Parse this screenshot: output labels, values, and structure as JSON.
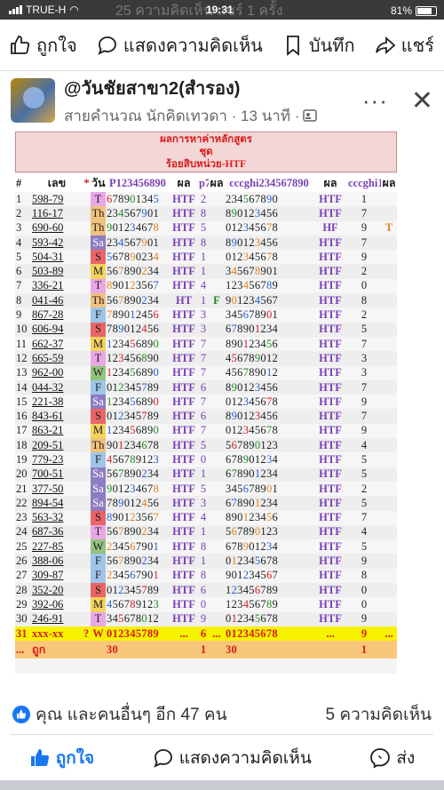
{
  "status_bar": {
    "carrier": "TRUE-H",
    "time": "19:31",
    "battery": "81%",
    "ghost_text": "25 ความคิดเห็น  แชร์ 1 ครั้ง"
  },
  "top_actions": {
    "like": "ถูกใจ",
    "comment": "แสดงความคิดเห็น",
    "save": "บันทึก",
    "share": "แชร์"
  },
  "post": {
    "author": "@วันชัยสาขา2(สำรอง)",
    "subtitle": "สายคำนวณ นักคิดเทวดา · 13 นาที ·",
    "more": "···",
    "close": "✕"
  },
  "table": {
    "head_lines": [
      "ผลการหาค่าหลักสูตร",
      "ชุด",
      "ร้อยสิบหน่วย-HTF"
    ],
    "columns": [
      "#",
      "เลข",
      "*",
      "วัน",
      "P123456890",
      "ผล",
      "p7",
      "ผล",
      "cccghi234567890",
      "ผล",
      "cccghi1",
      "ผล"
    ],
    "rows": [
      {
        "n": "1",
        "code": "598-79",
        "day": "T",
        "d1": "678901345",
        "htf": "HTF",
        "p7": "2",
        "r1": "",
        "d2": "234567890",
        "htf2": "HTF",
        "g": "1",
        "r2": ""
      },
      {
        "n": "2",
        "code": "116-17",
        "day": "Th",
        "d1": "234567901",
        "htf": "HTF",
        "p7": "8",
        "r1": "",
        "d2": "890123456",
        "htf2": "HTF",
        "g": "7",
        "r2": ""
      },
      {
        "n": "3",
        "code": "690-60",
        "day": "Th",
        "d1": "901234678",
        "htf": "HTF",
        "p7": "5",
        "r1": "",
        "d2": "012345678",
        "htf2": "HF",
        "g": "9",
        "r2": "T"
      },
      {
        "n": "4",
        "code": "593-42",
        "day": "Sa",
        "d1": "234567901",
        "htf": "HTF",
        "p7": "8",
        "r1": "",
        "d2": "890123456",
        "htf2": "HTF",
        "g": "7",
        "r2": ""
      },
      {
        "n": "5",
        "code": "504-31",
        "day": "S",
        "d1": "567890234",
        "htf": "HTF",
        "p7": "1",
        "r1": "",
        "d2": "012345678",
        "htf2": "HTF",
        "g": "9",
        "r2": ""
      },
      {
        "n": "6",
        "code": "503-89",
        "day": "M",
        "d1": "567890234",
        "htf": "HTF",
        "p7": "1",
        "r1": "",
        "d2": "345678901",
        "htf2": "HTF",
        "g": "2",
        "r2": ""
      },
      {
        "n": "7",
        "code": "336-21",
        "day": "T",
        "d1": "890123567",
        "htf": "HTF",
        "p7": "4",
        "r1": "",
        "d2": "123456789",
        "htf2": "HTF",
        "g": "0",
        "r2": ""
      },
      {
        "n": "8",
        "code": "041-46",
        "day": "Th",
        "d1": "567890234",
        "htf": "HT",
        "p7": "1",
        "r1": "F",
        "d2": "901234567",
        "htf2": "HTF",
        "g": "8",
        "r2": ""
      },
      {
        "n": "9",
        "code": "867-28",
        "day": "F",
        "d1": "789012456",
        "htf": "HTF",
        "p7": "3",
        "r1": "",
        "d2": "345678901",
        "htf2": "HTF",
        "g": "2",
        "r2": ""
      },
      {
        "n": "10",
        "code": "606-94",
        "day": "S",
        "d1": "789012456",
        "htf": "HTF",
        "p7": "3",
        "r1": "",
        "d2": "678901234",
        "htf2": "HTF",
        "g": "5",
        "r2": ""
      },
      {
        "n": "11",
        "code": "662-37",
        "day": "M",
        "d1": "123456890",
        "htf": "HTF",
        "p7": "7",
        "r1": "",
        "d2": "890123456",
        "htf2": "HTF",
        "g": "7",
        "r2": ""
      },
      {
        "n": "12",
        "code": "665-59",
        "day": "T",
        "d1": "123456890",
        "htf": "HTF",
        "p7": "7",
        "r1": "",
        "d2": "456789012",
        "htf2": "HTF",
        "g": "3",
        "r2": ""
      },
      {
        "n": "13",
        "code": "962-00",
        "day": "W",
        "d1": "123456890",
        "htf": "HTF",
        "p7": "7",
        "r1": "",
        "d2": "456789012",
        "htf2": "HTF",
        "g": "3",
        "r2": ""
      },
      {
        "n": "14",
        "code": "044-32",
        "day": "F",
        "d1": "012345789",
        "htf": "HTF",
        "p7": "6",
        "r1": "",
        "d2": "890123456",
        "htf2": "HTF",
        "g": "7",
        "r2": ""
      },
      {
        "n": "15",
        "code": "221-38",
        "day": "Sa",
        "d1": "123456890",
        "htf": "HTF",
        "p7": "7",
        "r1": "",
        "d2": "012345678",
        "htf2": "HTF",
        "g": "9",
        "r2": ""
      },
      {
        "n": "16",
        "code": "843-61",
        "day": "S",
        "d1": "012345789",
        "htf": "HTF",
        "p7": "6",
        "r1": "",
        "d2": "890123456",
        "htf2": "HTF",
        "g": "7",
        "r2": ""
      },
      {
        "n": "17",
        "code": "863-21",
        "day": "M",
        "d1": "123456890",
        "htf": "HTF",
        "p7": "7",
        "r1": "",
        "d2": "012345678",
        "htf2": "HTF",
        "g": "9",
        "r2": ""
      },
      {
        "n": "18",
        "code": "209-51",
        "day": "Th",
        "d1": "901234678",
        "htf": "HTF",
        "p7": "5",
        "r1": "",
        "d2": "567890123",
        "htf2": "HTF",
        "g": "4",
        "r2": ""
      },
      {
        "n": "19",
        "code": "779-23",
        "day": "F",
        "d1": "456789123",
        "htf": "HTF",
        "p7": "0",
        "r1": "",
        "d2": "678901234",
        "htf2": "HTF",
        "g": "5",
        "r2": ""
      },
      {
        "n": "20",
        "code": "700-51",
        "day": "Sa",
        "d1": "567890234",
        "htf": "HTF",
        "p7": "1",
        "r1": "",
        "d2": "678901234",
        "htf2": "HTF",
        "g": "5",
        "r2": ""
      },
      {
        "n": "21",
        "code": "377-50",
        "day": "Sa",
        "d1": "901234678",
        "htf": "HTF",
        "p7": "5",
        "r1": "",
        "d2": "345678901",
        "htf2": "HTF",
        "g": "2",
        "r2": ""
      },
      {
        "n": "22",
        "code": "894-54",
        "day": "Sa",
        "d1": "789012456",
        "htf": "HTF",
        "p7": "3",
        "r1": "",
        "d2": "678901234",
        "htf2": "HTF",
        "g": "5",
        "r2": ""
      },
      {
        "n": "23",
        "code": "563-32",
        "day": "S",
        "d1": "890123567",
        "htf": "HTF",
        "p7": "4",
        "r1": "",
        "d2": "890123456",
        "htf2": "HTF",
        "g": "7",
        "r2": ""
      },
      {
        "n": "24",
        "code": "687-36",
        "day": "T",
        "d1": "567890234",
        "htf": "HTF",
        "p7": "1",
        "r1": "",
        "d2": "567890123",
        "htf2": "HTF",
        "g": "4",
        "r2": ""
      },
      {
        "n": "25",
        "code": "227-85",
        "day": "W",
        "d1": "234567901",
        "htf": "HTF",
        "p7": "8",
        "r1": "",
        "d2": "678901234",
        "htf2": "HTF",
        "g": "5",
        "r2": ""
      },
      {
        "n": "26",
        "code": "388-06",
        "day": "F",
        "d1": "567890234",
        "htf": "HTF",
        "p7": "1",
        "r1": "",
        "d2": "012345678",
        "htf2": "HTF",
        "g": "9",
        "r2": ""
      },
      {
        "n": "27",
        "code": "309-87",
        "day": "F",
        "d1": "234567901",
        "htf": "HTF",
        "p7": "8",
        "r1": "",
        "d2": "901234567",
        "htf2": "HTF",
        "g": "8",
        "r2": ""
      },
      {
        "n": "28",
        "code": "352-20",
        "day": "S",
        "d1": "012345789",
        "htf": "HTF",
        "p7": "6",
        "r1": "",
        "d2": "123456789",
        "htf2": "HTF",
        "g": "0",
        "r2": ""
      },
      {
        "n": "29",
        "code": "392-06",
        "day": "M",
        "d1": "456789123",
        "htf": "HTF",
        "p7": "0",
        "r1": "",
        "d2": "123456789",
        "htf2": "HTF",
        "g": "0",
        "r2": ""
      },
      {
        "n": "30",
        "code": "246-91",
        "day": "T",
        "d1": "345678012",
        "htf": "HTF",
        "p7": "9",
        "r1": "",
        "d2": "012345678",
        "htf2": "HTF",
        "g": "9",
        "r2": ""
      }
    ],
    "yellow_row": {
      "n": "31",
      "code": "xxx-xx",
      "star": "?",
      "day": "W",
      "d1": "012345789",
      "htf": "...",
      "p7": "6",
      "r1": "...",
      "d2": "012345678",
      "htf2": "...",
      "g": "9",
      "r2": "..."
    },
    "orange_row": {
      "n": "...",
      "code": "ถูก",
      "d1": "30",
      "p7": "1",
      "d2": "30",
      "g": "1"
    }
  },
  "reactions": {
    "likes": "คุณ และคนอื่นๆ อีก 47 คน",
    "comments": "5 ความคิดเห็น"
  },
  "bottom_actions": {
    "like": "ถูกใจ",
    "comment": "แสดงความคิดเห็น",
    "send": "ส่ง"
  },
  "colors": {
    "accent": "#1877f2",
    "htf_purple": "#7a3fb5",
    "red": "#d81b1b"
  }
}
